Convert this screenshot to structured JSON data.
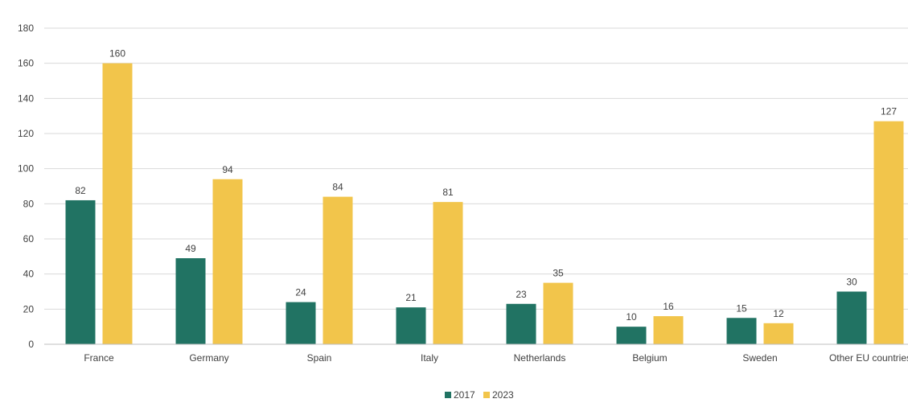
{
  "chart_data": {
    "type": "bar",
    "title": "",
    "xlabel": "",
    "ylabel": "",
    "ylim": [
      0,
      180
    ],
    "yticks": [
      0,
      20,
      40,
      60,
      80,
      100,
      120,
      140,
      160,
      180
    ],
    "grid": true,
    "legend_position": "bottom",
    "categories": [
      "France",
      "Germany",
      "Spain",
      "Italy",
      "Netherlands",
      "Belgium",
      "Sweden",
      "Other EU countries"
    ],
    "series": [
      {
        "name": "2017",
        "color": "#217363",
        "values": [
          82,
          49,
          24,
          21,
          23,
          10,
          15,
          30
        ]
      },
      {
        "name": "2023",
        "color": "#f2c54b",
        "values": [
          160,
          94,
          84,
          81,
          35,
          16,
          12,
          127
        ]
      }
    ]
  }
}
